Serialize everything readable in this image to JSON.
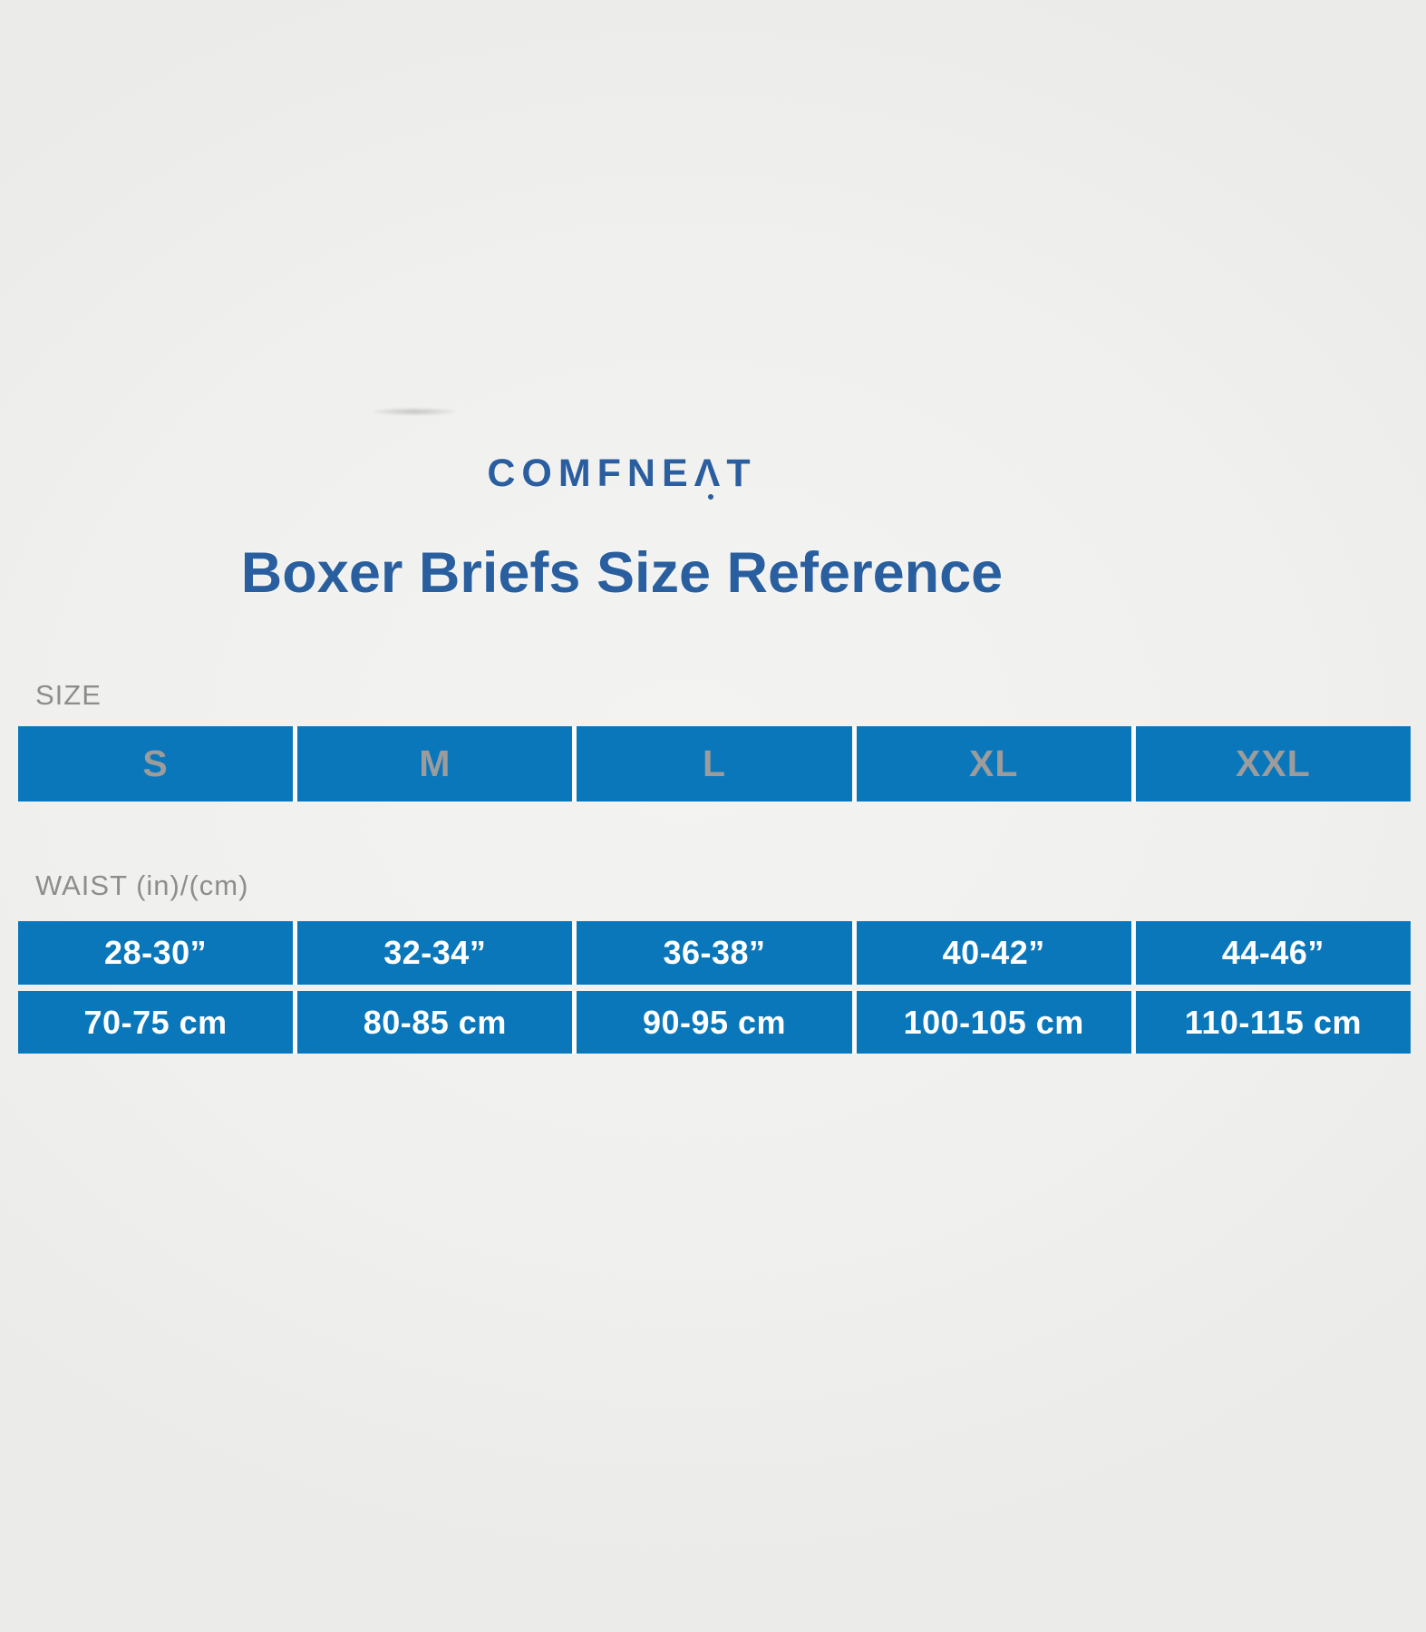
{
  "brand": {
    "logo_full": "COMFNEAT",
    "logo_pre": "COMFNE",
    "logo_stylized_a": "Λ",
    "logo_post": "T",
    "logo_color": "#2b5e9e"
  },
  "header": {
    "title": "Boxer Briefs Size Reference",
    "title_color": "#2a5f9f"
  },
  "table": {
    "size_label": "SIZE",
    "waist_label": "WAIST (in)/(cm)",
    "sizes": [
      "S",
      "M",
      "L",
      "XL",
      "XXL"
    ],
    "waist_in": [
      "28-30”",
      "32-34”",
      "36-38”",
      "40-42”",
      "44-46”"
    ],
    "waist_cm": [
      "70-75 cm",
      "80-85 cm",
      "90-95 cm",
      "100-105 cm",
      "110-115 cm"
    ],
    "colors": {
      "cell_blue": "#0b77bb",
      "size_letter_gray": "#9c9c9c",
      "value_white": "#ffffff",
      "label_gray": "#8d8d8d",
      "background": "#f0f0ee"
    }
  },
  "chart_data": {
    "type": "table",
    "title": "Boxer Briefs Size Reference",
    "brand": "COMFNEAT",
    "columns": [
      "S",
      "M",
      "L",
      "XL",
      "XXL"
    ],
    "rows": [
      {
        "label": "SIZE",
        "values": [
          "S",
          "M",
          "L",
          "XL",
          "XXL"
        ]
      },
      {
        "label": "WAIST (in)",
        "values": [
          "28-30”",
          "32-34”",
          "36-38”",
          "40-42”",
          "44-46”"
        ]
      },
      {
        "label": "WAIST (cm)",
        "values": [
          "70-75 cm",
          "80-85 cm",
          "90-95 cm",
          "100-105 cm",
          "110-115 cm"
        ]
      }
    ],
    "layout": {
      "grid": false,
      "legend": "none"
    }
  }
}
